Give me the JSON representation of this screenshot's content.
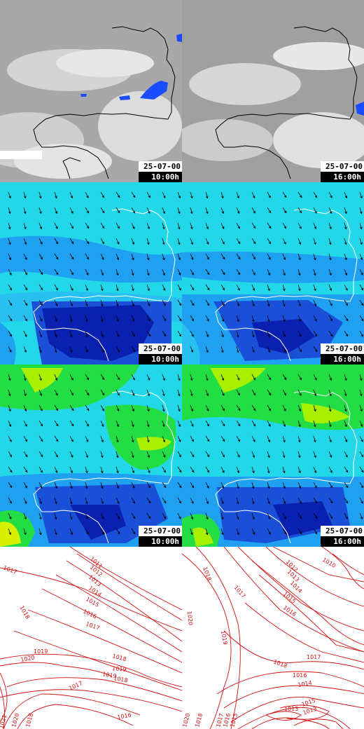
{
  "panels": [
    {
      "field": "cloud",
      "date": "25-07-00",
      "hour": "10:00h"
    },
    {
      "field": "cloud",
      "date": "25-07-00",
      "hour": "16:00h"
    },
    {
      "field": "wind-low",
      "date": "25-07-00",
      "hour": "10:00h"
    },
    {
      "field": "wind-low",
      "date": "25-07-00",
      "hour": "16:00h"
    },
    {
      "field": "wind-high",
      "date": "25-07-00",
      "hour": "10:00h"
    },
    {
      "field": "wind-high",
      "date": "25-07-00",
      "hour": "16:00h"
    },
    {
      "field": "pressure",
      "isobars": [
        "1017",
        "1011",
        "1012",
        "1013",
        "1014",
        "1015",
        "1016",
        "1017",
        "1018",
        "1018",
        "1019",
        "1020",
        "1019",
        "1018",
        "1017",
        "1016",
        "1021",
        "1020",
        "1018",
        "1019"
      ]
    },
    {
      "field": "pressure",
      "isobars": [
        "1018",
        "1012",
        "1010",
        "1013",
        "1014",
        "1017",
        "1015",
        "1016",
        "1019",
        "1020",
        "1018",
        "1017",
        "1016",
        "1014",
        "1013",
        "1015",
        "1013",
        "1020",
        "1018",
        "1017",
        "1016",
        "1015"
      ]
    }
  ],
  "colors": {
    "cloud_dark": "#a6a6a6",
    "cloud_light": "#e8e8e8",
    "rain": "#1a4cff",
    "wind_calm": "#0a20b0",
    "wind_medium": "#1fa0f0",
    "wind_fresh": "#22e0e0",
    "wind_strong": "#22dd44",
    "wind_gale": "#d6f000",
    "isobar": "#d01010",
    "coastline": "#000000"
  }
}
